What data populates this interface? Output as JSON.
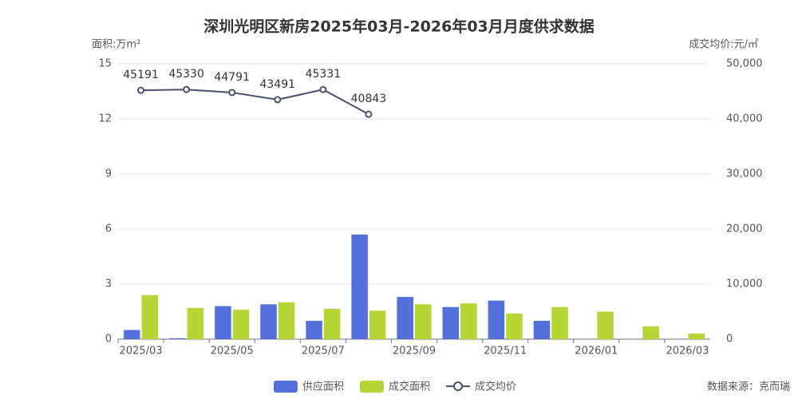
{
  "chart_data": {
    "type": "bar-line",
    "title": "深圳光明区新房2025年03月-2026年03月月度供求数据",
    "y_axis_label": "面积:万m²",
    "y2_axis_label": "成交均价:元/㎡",
    "source": "数据来源：克而瑞",
    "categories": [
      "2025/03",
      null,
      "2025/05",
      null,
      "2025/07",
      null,
      "2025/09",
      null,
      "2025/11",
      null,
      "2026/01",
      null,
      "2026/03"
    ],
    "series": [
      {
        "name": "供应面积",
        "color": "#5470dc",
        "type": "bar",
        "values": [
          0.5,
          0.05,
          1.8,
          1.9,
          1.0,
          5.7,
          2.3,
          1.75,
          2.1,
          1.0,
          null,
          null,
          null
        ]
      },
      {
        "name": "成交面积",
        "color": "#b6d635",
        "type": "bar",
        "values": [
          2.4,
          1.7,
          1.6,
          2.0,
          1.65,
          1.55,
          1.9,
          1.95,
          1.4,
          1.75,
          1.5,
          0.7,
          0.3
        ]
      },
      {
        "name": "成交均价",
        "color": "#4a4f6e",
        "type": "line",
        "axis": "y2",
        "values": [
          45191,
          45330,
          44791,
          43491,
          45331,
          40843,
          null,
          null,
          null,
          null,
          null,
          null,
          null
        ]
      }
    ],
    "ylim": [
      0,
      15
    ],
    "yticks": [
      0,
      3,
      6,
      9,
      12,
      15
    ],
    "y2lim": [
      0,
      50000
    ],
    "y2ticks": [
      0,
      {
        "value": 10000,
        "label": "10,000"
      },
      {
        "value": 20000,
        "label": "20,000"
      },
      {
        "value": 30000,
        "label": "30,000"
      },
      {
        "value": 40000,
        "label": "40,000"
      },
      {
        "value": 50000,
        "label": "50,000"
      }
    ]
  }
}
